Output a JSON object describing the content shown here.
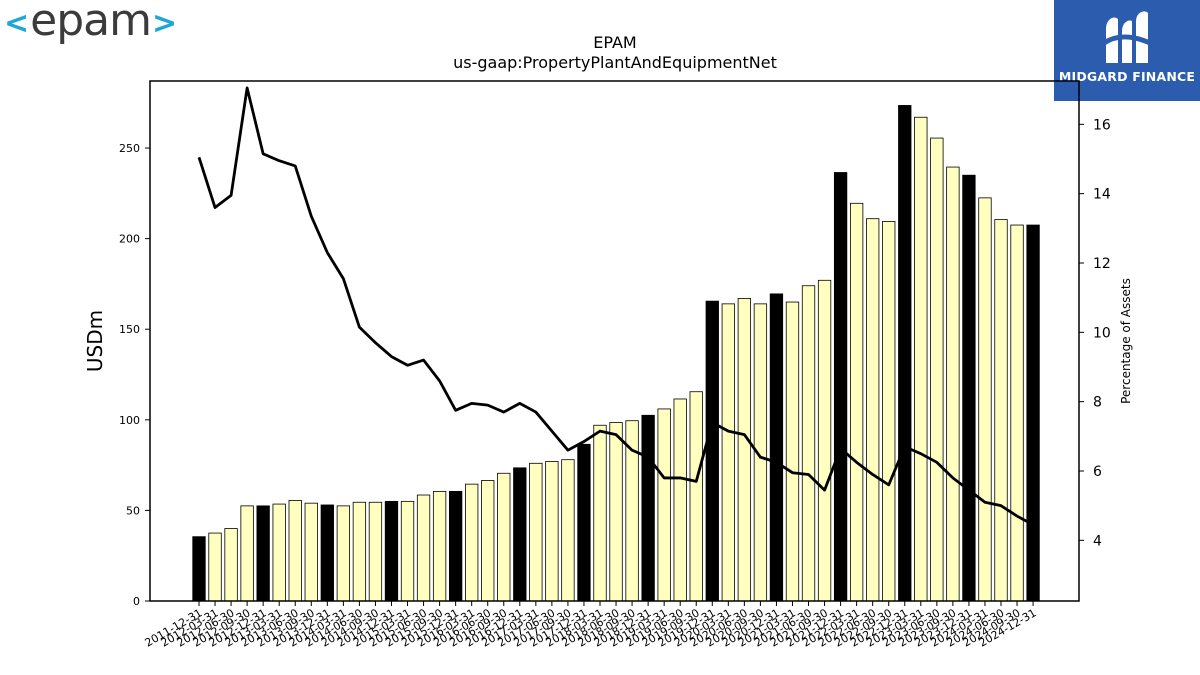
{
  "logos": {
    "left_text": "epam",
    "left_bracket_open": "<",
    "left_bracket_close": ">",
    "right_text": "MIDGARD FINANCE"
  },
  "colors": {
    "highlight_bar": "#000000",
    "regular_bar": "#ffffc0",
    "bar_edge": "#000000",
    "line": "#000000",
    "logo_accent": "#1ba7d8",
    "logo_right_bg": "#2b5cae"
  },
  "chart_data": {
    "type": "bar",
    "title": "EPAM",
    "subtitle": "us-gaap:PropertyPlantAndEquipmentNet",
    "ylabel": "USDm",
    "y2label": "Percentage of Assets",
    "ylim": [
      0,
      287
    ],
    "y2lim": [
      2.25,
      17.25
    ],
    "yticks": [
      0,
      50,
      100,
      150,
      200,
      250
    ],
    "y2ticks": [
      4,
      6,
      8,
      10,
      12,
      14,
      16
    ],
    "categories": [
      "2011-12-31",
      "2012-03-31",
      "2012-06-30",
      "2012-09-30",
      "2012-12-31",
      "2013-03-31",
      "2013-06-30",
      "2013-09-30",
      "2013-12-31",
      "2014-03-31",
      "2014-06-30",
      "2014-09-30",
      "2014-12-31",
      "2015-03-31",
      "2015-06-30",
      "2015-09-30",
      "2015-12-31",
      "2016-03-31",
      "2016-06-30",
      "2016-09-30",
      "2016-12-31",
      "2017-03-31",
      "2017-06-30",
      "2017-09-30",
      "2017-12-31",
      "2018-03-31",
      "2018-06-30",
      "2018-09-30",
      "2018-12-31",
      "2019-03-31",
      "2019-06-30",
      "2019-09-30",
      "2019-12-31",
      "2020-03-31",
      "2020-06-30",
      "2020-09-30",
      "2020-12-31",
      "2021-03-31",
      "2021-06-30",
      "2021-09-30",
      "2021-12-31",
      "2022-03-31",
      "2022-06-30",
      "2022-09-30",
      "2022-12-31",
      "2023-03-31",
      "2023-06-30",
      "2023-09-30",
      "2023-12-31",
      "2024-03-31",
      "2024-06-30",
      "2024-09-30",
      "2024-12-31"
    ],
    "xtick_labels": [
      "2011-12-31",
      "2012-03-31",
      "2012-06-30",
      "2012-09-30",
      "2012-12-31",
      "2013-03-31",
      "2013-06-30",
      "2013-09-30",
      "2013-12-31",
      "2014-03-31",
      "2014-06-30",
      "2014-09-30",
      "2014-12-31",
      "2015-03-31",
      "2015-06-30",
      "2015-09-30",
      "2015-12-31",
      "2016-03-31",
      "2016-06-30",
      "2016-09-30",
      "2016-12-31",
      "2017-03-31",
      "2017-06-30",
      "2017-09-30",
      "2017-12-31",
      "2018-03-31",
      "2018-06-30",
      "2018-09-30",
      "2018-12-31",
      "2019-03-31",
      "2019-06-30",
      "2019-09-30",
      "2019-12-31",
      "2020-03-31",
      "2020-06-30",
      "2020-09-30",
      "2020-12-31",
      "2021-03-31",
      "2021-06-30",
      "2021-09-30",
      "2021-12-31",
      "2022-03-31",
      "2022-06-30",
      "2022-09-30",
      "2022-12-31",
      "2023-03-31",
      "2023-06-30",
      "2023-09-30",
      "2023-12-31",
      "2024-03-31",
      "2024-06-30",
      "2024-09-30",
      "2024-12-31"
    ],
    "highlighted": [
      true,
      false,
      false,
      false,
      true,
      false,
      false,
      false,
      true,
      false,
      false,
      false,
      true,
      false,
      false,
      false,
      true,
      false,
      false,
      false,
      true,
      false,
      false,
      false,
      true,
      false,
      false,
      false,
      true,
      false,
      false,
      false,
      true,
      false,
      false,
      false,
      true,
      false,
      false,
      false,
      true,
      false,
      false,
      false,
      true,
      false,
      false,
      false,
      true,
      false,
      false,
      false,
      true
    ],
    "series": [
      {
        "axis": "left",
        "type": "bar",
        "values": [
          35.5,
          37.5,
          40,
          52.5,
          52.5,
          53.5,
          55.5,
          54,
          53,
          52.5,
          54.5,
          54.5,
          55,
          55,
          58.5,
          60.5,
          60.5,
          64.5,
          66.5,
          70.5,
          73.5,
          76,
          77,
          78,
          86.5,
          97,
          98.5,
          99.5,
          102.5,
          106,
          111.5,
          115.5,
          165.5,
          164,
          167,
          164,
          169.5,
          165,
          174,
          177,
          236.5,
          219.5,
          211,
          209.5,
          273.5,
          267,
          255.5,
          239.5,
          235,
          222.5,
          210.5,
          207.5,
          207.5
        ]
      },
      {
        "axis": "right",
        "type": "line",
        "values": [
          15.05,
          13.6,
          13.95,
          17.05,
          15.15,
          14.95,
          14.8,
          13.35,
          12.3,
          11.55,
          10.15,
          9.7,
          9.3,
          9.05,
          9.2,
          8.6,
          7.75,
          7.95,
          7.9,
          7.7,
          7.95,
          7.7,
          7.15,
          6.6,
          6.85,
          7.15,
          7.05,
          6.6,
          6.4,
          5.8,
          5.8,
          5.7,
          7.4,
          7.15,
          7.05,
          6.4,
          6.25,
          5.95,
          5.9,
          5.45,
          6.65,
          6.25,
          5.9,
          5.6,
          6.7,
          6.5,
          6.25,
          5.8,
          5.45,
          5.1,
          5,
          4.7,
          4.45
        ]
      }
    ],
    "grid": false,
    "legend": "none"
  }
}
